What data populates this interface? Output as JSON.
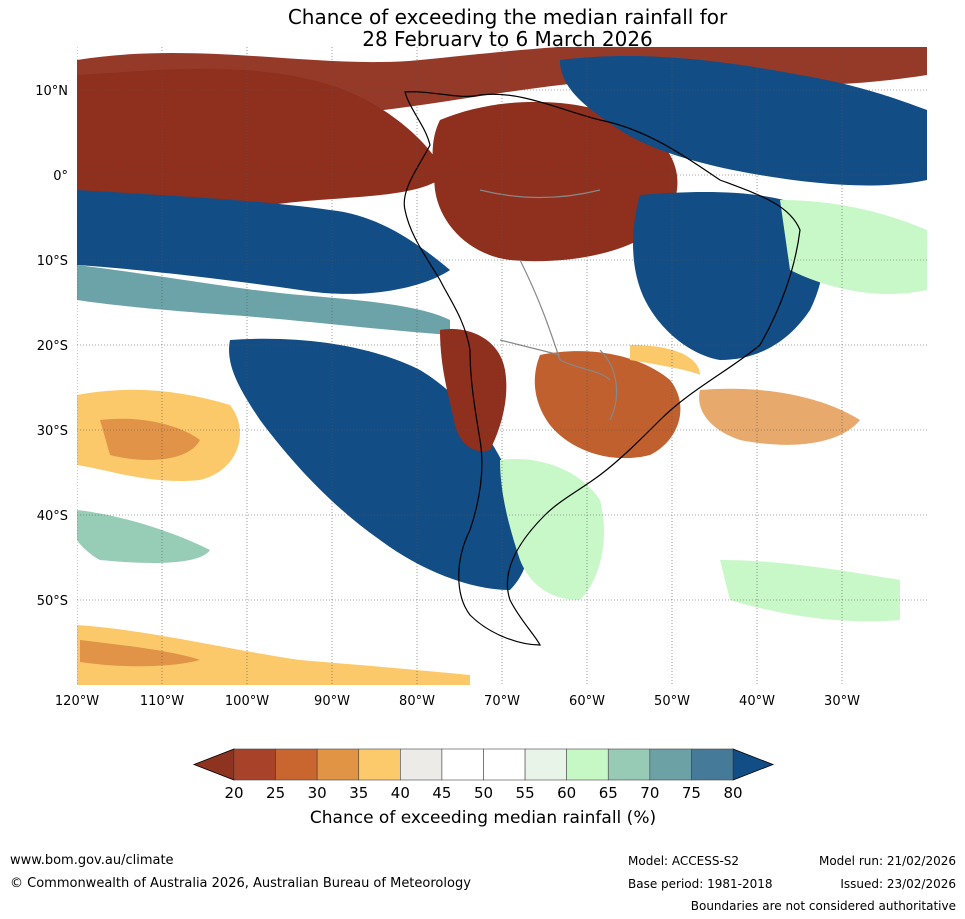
{
  "title": {
    "line1": "Chance of exceeding the median rainfall for",
    "line2": "28 February to 6 March 2026"
  },
  "map": {
    "lat_labels": [
      "10°N",
      "0°",
      "10°S",
      "20°S",
      "30°S",
      "40°S",
      "50°S"
    ],
    "lon_labels": [
      "120°W",
      "110°W",
      "100°W",
      "90°W",
      "80°W",
      "70°W",
      "60°W",
      "50°W",
      "40°W",
      "30°W"
    ],
    "colors": {
      "very_dry": "#8f2f1e",
      "dry": "#c0602f",
      "mod_dry": "#e19347",
      "slight_dry": "#fbc96a",
      "neutral_low": "#ecebe7",
      "neutral": "#ffffff",
      "slight_wet": "#c8f7c8",
      "mod_wet": "#97ccb6",
      "wet": "#6ca3a8",
      "very_wet": "#124d85"
    }
  },
  "legend": {
    "tick_labels": [
      "20",
      "25",
      "30",
      "35",
      "40",
      "45",
      "50",
      "55",
      "60",
      "65",
      "70",
      "75",
      "80"
    ],
    "colors": [
      "#a8432a",
      "#c9652f",
      "#e09444",
      "#fdca6b",
      "#edebe7",
      "#ffffff",
      "#ffffff",
      "#e8f4e8",
      "#c6f8c6",
      "#98cbb5",
      "#6ca1a6",
      "#457a99"
    ],
    "low_extend_color": "#8e3320",
    "high_extend_color": "#124d85",
    "title": "Chance of exceeding median rainfall (%)"
  },
  "footer": {
    "website": "www.bom.gov.au/climate",
    "copyright": "© Commonwealth of Australia 2026, Australian Bureau of Meteorology",
    "model": "Model: ACCESS-S2",
    "base_period": "Base period: 1981-2018",
    "model_run": "Model run: 21/02/2026",
    "issued": "Issued: 23/02/2026",
    "disclaimer": "Boundaries are not considered authoritative"
  }
}
